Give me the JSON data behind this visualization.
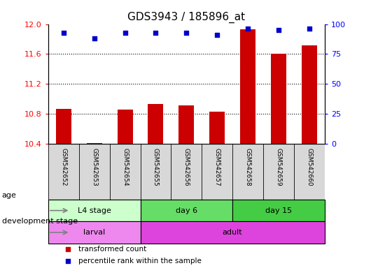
{
  "title": "GDS3943 / 185896_at",
  "samples": [
    "GSM542652",
    "GSM542653",
    "GSM542654",
    "GSM542655",
    "GSM542656",
    "GSM542657",
    "GSM542658",
    "GSM542659",
    "GSM542660"
  ],
  "transformed_count": [
    10.87,
    10.41,
    10.86,
    10.93,
    10.91,
    10.83,
    11.93,
    11.6,
    11.72
  ],
  "percentile_rank": [
    93,
    88,
    93,
    93,
    93,
    91,
    96,
    95,
    96
  ],
  "ylim_left": [
    10.4,
    12.0
  ],
  "ylim_right": [
    0,
    100
  ],
  "yticks_left": [
    10.4,
    10.8,
    11.2,
    11.6,
    12.0
  ],
  "yticks_right": [
    0,
    25,
    50,
    75,
    100
  ],
  "bar_color": "#cc0000",
  "scatter_color": "#0000cc",
  "bar_bottom": 10.4,
  "age_groups": [
    {
      "label": "L4 stage",
      "start": 0,
      "end": 3,
      "color": "#ccffcc"
    },
    {
      "label": "day 6",
      "start": 3,
      "end": 6,
      "color": "#66dd66"
    },
    {
      "label": "day 15",
      "start": 6,
      "end": 9,
      "color": "#44cc44"
    }
  ],
  "dev_groups": [
    {
      "label": "larval",
      "start": 0,
      "end": 3,
      "color": "#ee88ee"
    },
    {
      "label": "adult",
      "start": 3,
      "end": 9,
      "color": "#dd44dd"
    }
  ],
  "age_label": "age",
  "dev_label": "development stage",
  "legend_bar_label": "transformed count",
  "legend_scatter_label": "percentile rank within the sample",
  "title_fontsize": 11,
  "tick_fontsize": 8,
  "label_fontsize": 8
}
